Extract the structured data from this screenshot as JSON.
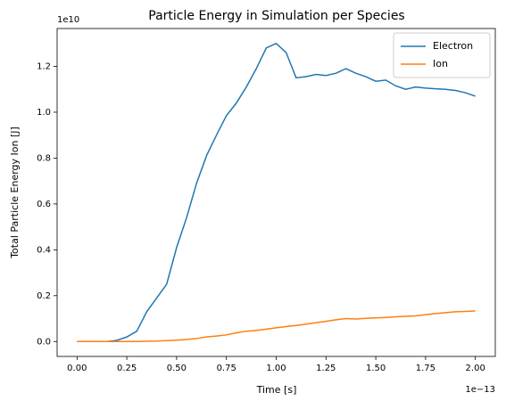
{
  "chart_data": {
    "type": "line",
    "title": "Particle Energy in Simulation per Species",
    "xlabel": "Time [s]",
    "ylabel": "Total Particle Energy Ion [J]",
    "x_offset_label": "1e−13",
    "y_offset_label": "1e10",
    "x": [
      0,
      0.05,
      0.1,
      0.15,
      0.2,
      0.25,
      0.3,
      0.35,
      0.4,
      0.45,
      0.5,
      0.55,
      0.6,
      0.65,
      0.7,
      0.75,
      0.8,
      0.85,
      0.9,
      0.95,
      1.0,
      1.05,
      1.1,
      1.15,
      1.2,
      1.25,
      1.3,
      1.35,
      1.4,
      1.45,
      1.5,
      1.55,
      1.6,
      1.65,
      1.7,
      1.75,
      1.8,
      1.85,
      1.9,
      1.95,
      2.0
    ],
    "series": [
      {
        "name": "Electron",
        "color": "#1f77b4",
        "values": [
          0,
          0,
          0,
          0,
          0.005,
          0.02,
          0.045,
          0.13,
          0.19,
          0.25,
          0.41,
          0.54,
          0.69,
          0.81,
          0.9,
          0.985,
          1.04,
          1.11,
          1.19,
          1.28,
          1.3,
          1.26,
          1.15,
          1.155,
          1.165,
          1.16,
          1.17,
          1.19,
          1.17,
          1.155,
          1.135,
          1.14,
          1.115,
          1.1,
          1.11,
          1.105,
          1.102,
          1.1,
          1.095,
          1.085,
          1.07
        ]
      },
      {
        "name": "Ion",
        "color": "#ff7f0e",
        "values": [
          0,
          0,
          0,
          0,
          0,
          0,
          0,
          0.001,
          0.002,
          0.004,
          0.006,
          0.009,
          0.013,
          0.02,
          0.024,
          0.029,
          0.038,
          0.045,
          0.048,
          0.054,
          0.06,
          0.065,
          0.07,
          0.076,
          0.082,
          0.088,
          0.095,
          0.1,
          0.098,
          0.101,
          0.103,
          0.105,
          0.108,
          0.11,
          0.112,
          0.117,
          0.122,
          0.126,
          0.13,
          0.131,
          0.133
        ]
      }
    ],
    "xlim": [
      -0.1,
      2.1
    ],
    "ylim": [
      -0.065,
      1.365
    ],
    "xticks": [
      {
        "value": 0,
        "label": "0.00"
      },
      {
        "value": 0.25,
        "label": "0.25"
      },
      {
        "value": 0.5,
        "label": "0.50"
      },
      {
        "value": 0.75,
        "label": "0.75"
      },
      {
        "value": 1,
        "label": "1.00"
      },
      {
        "value": 1.25,
        "label": "1.25"
      },
      {
        "value": 1.5,
        "label": "1.50"
      },
      {
        "value": 1.75,
        "label": "1.75"
      },
      {
        "value": 2,
        "label": "2.00"
      }
    ],
    "yticks": [
      {
        "value": 0,
        "label": "0.0"
      },
      {
        "value": 0.2,
        "label": "0.2"
      },
      {
        "value": 0.4,
        "label": "0.4"
      },
      {
        "value": 0.6,
        "label": "0.6"
      },
      {
        "value": 0.8,
        "label": "0.8"
      },
      {
        "value": 1,
        "label": "1.0"
      },
      {
        "value": 1.2,
        "label": "1.2"
      }
    ],
    "grid": false,
    "legend": "upper right"
  }
}
